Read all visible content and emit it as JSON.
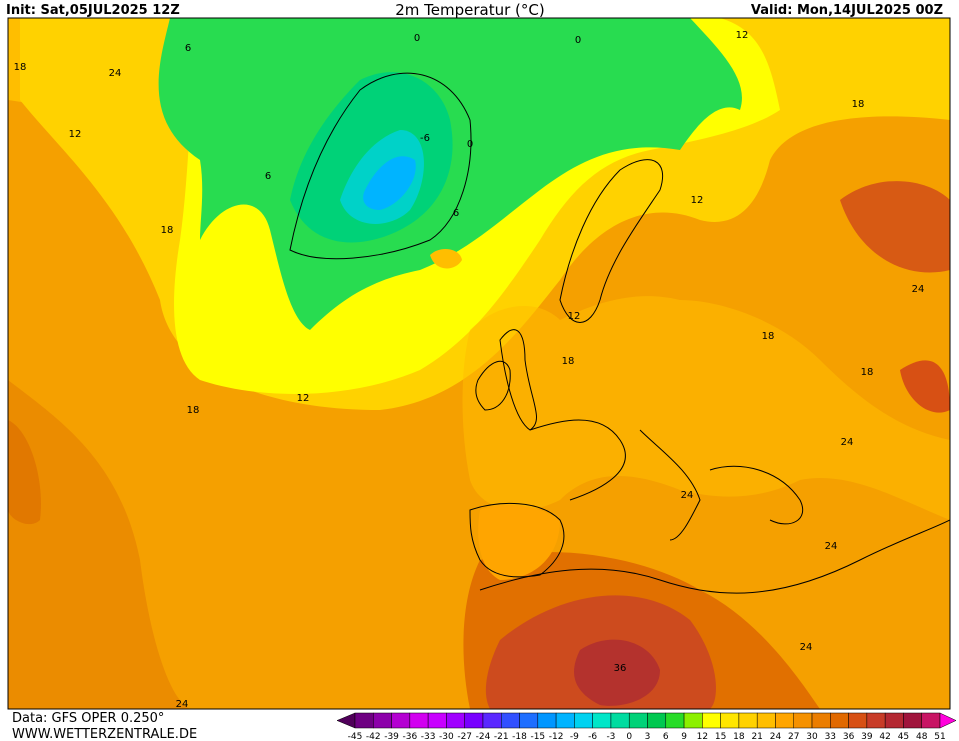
{
  "header": {
    "init": "Init: Sat,05JUL2025 12Z",
    "title": "2m Temperatur (°C)",
    "valid": "Valid: Mon,14JUL2025 00Z"
  },
  "footer": {
    "data": "Data: GFS OPER 0.250°",
    "site": "WWW.WETTERZENTRALE.DE"
  },
  "map": {
    "contour_labels": [
      18,
      24,
      6,
      12,
      6,
      18,
      0,
      0,
      -6,
      0,
      6,
      12,
      18,
      12,
      24,
      12,
      18,
      18,
      18,
      24,
      18,
      12,
      24,
      24,
      24,
      36,
      24
    ]
  },
  "colorbar": {
    "labels": [
      -45,
      -42,
      -39,
      -36,
      -33,
      -30,
      -27,
      -24,
      -21,
      -18,
      -15,
      -12,
      -9,
      -6,
      -3,
      0,
      3,
      6,
      9,
      12,
      15,
      18,
      21,
      24,
      27,
      30,
      33,
      36,
      39,
      42,
      45,
      48,
      51
    ],
    "colors": [
      "#50005a",
      "#6e0082",
      "#8c00aa",
      "#b400d2",
      "#d200f0",
      "#c800ff",
      "#a000ff",
      "#7800ff",
      "#5a28ff",
      "#3250ff",
      "#1e6eff",
      "#0096ff",
      "#00b4ff",
      "#00d2f0",
      "#00e6c8",
      "#00dca0",
      "#00d278",
      "#00c850",
      "#28dc28",
      "#8cf000",
      "#ffff00",
      "#ffe600",
      "#ffd200",
      "#ffbe00",
      "#ffa500",
      "#f59100",
      "#eb7d00",
      "#e16900",
      "#d75014",
      "#c83c28",
      "#b42832",
      "#a0143c",
      "#c81464",
      "#ff00dc"
    ]
  }
}
